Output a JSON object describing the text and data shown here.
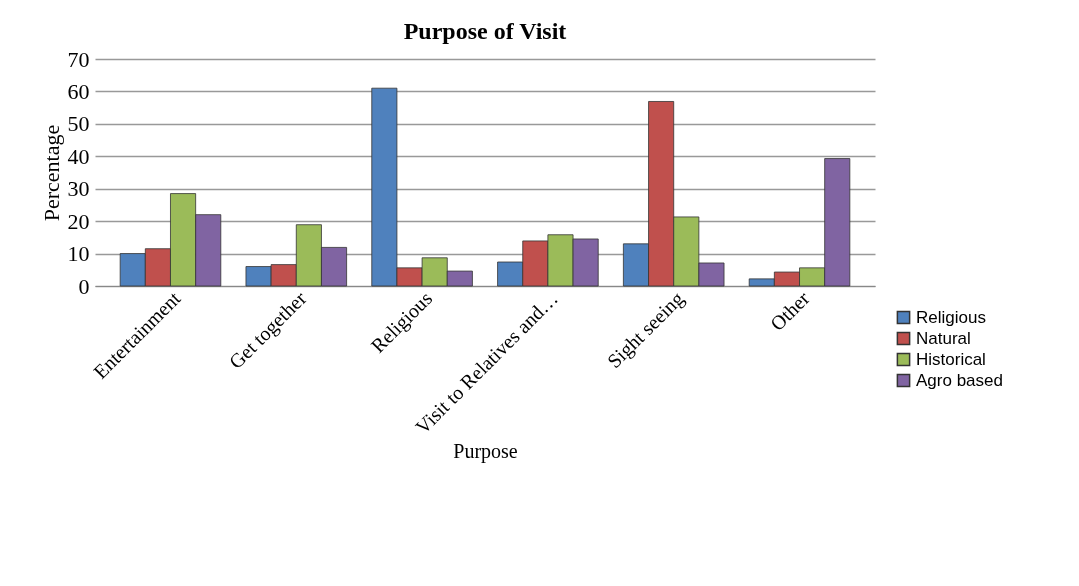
{
  "chart_data": {
    "type": "bar",
    "title": "Purpose of Visit",
    "xlabel": "Purpose",
    "ylabel": "Percentage",
    "categories": [
      "Entertainment",
      "Get together",
      "Religious",
      "Visit to Relatives and…",
      "Sight seeing",
      "Other"
    ],
    "series": [
      {
        "name": "Religious",
        "color": "#4f81bd",
        "values": [
          10,
          6,
          61,
          7.4,
          13,
          2.2
        ]
      },
      {
        "name": "Natural",
        "color": "#c0504d",
        "values": [
          11.5,
          6.6,
          5.6,
          13.9,
          56.9,
          4.3
        ]
      },
      {
        "name": "Historical",
        "color": "#9bbb59",
        "values": [
          28.5,
          18.9,
          8.7,
          15.8,
          21.3,
          5.6
        ]
      },
      {
        "name": "Agro based",
        "color": "#8064a2",
        "values": [
          22,
          11.9,
          4.6,
          14.5,
          7.1,
          39.3
        ]
      }
    ],
    "ylim": [
      0,
      70
    ],
    "yticks": [
      0,
      10,
      20,
      30,
      40,
      50,
      60,
      70
    ],
    "grid": "y",
    "legend": "bottom right"
  }
}
